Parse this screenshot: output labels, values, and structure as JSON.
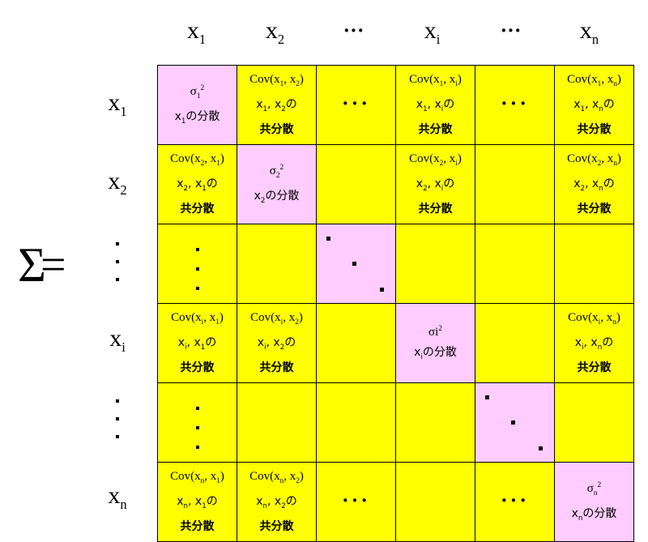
{
  "col_headers": [
    {
      "base": "x",
      "sub": "1"
    },
    {
      "base": "x",
      "sub": "2"
    },
    {
      "text": "···"
    },
    {
      "base": "x",
      "sub": "i"
    },
    {
      "text": "···"
    },
    {
      "base": "x",
      "sub": "n"
    }
  ],
  "row_headers": [
    {
      "base": "x",
      "sub": "1"
    },
    {
      "base": "x",
      "sub": "2"
    },
    {
      "text": "⋮"
    },
    {
      "base": "x",
      "sub": "i"
    },
    {
      "text": "⋮"
    },
    {
      "base": "x",
      "sub": "n"
    }
  ],
  "equation": {
    "symbol": "Σ",
    "equals": "="
  },
  "labels": {
    "variance_suffix": "の分散",
    "covariance_suffix": "の",
    "kyobunsan": "共分散",
    "cov": "Cov"
  },
  "colors": {
    "off_diagonal": "#ffff00",
    "diagonal": "#ffccff"
  },
  "matrix": [
    [
      {
        "kind": "var",
        "sigma_sub": "1",
        "var_sub": "1"
      },
      {
        "kind": "cov",
        "a": "1",
        "b": "2"
      },
      {
        "kind": "hdots"
      },
      {
        "kind": "cov",
        "a": "1",
        "b": "i"
      },
      {
        "kind": "hdots"
      },
      {
        "kind": "cov",
        "a": "1",
        "b": "n"
      }
    ],
    [
      {
        "kind": "cov",
        "a": "2",
        "b": "1"
      },
      {
        "kind": "var",
        "sigma_sub": "2",
        "var_sub": "2"
      },
      {
        "kind": "empty"
      },
      {
        "kind": "cov",
        "a": "2",
        "b": "i"
      },
      {
        "kind": "empty"
      },
      {
        "kind": "cov",
        "a": "2",
        "b": "n"
      }
    ],
    [
      {
        "kind": "vdots"
      },
      {
        "kind": "empty"
      },
      {
        "kind": "ddots"
      },
      {
        "kind": "empty"
      },
      {
        "kind": "empty"
      },
      {
        "kind": "empty"
      }
    ],
    [
      {
        "kind": "cov",
        "a": "i",
        "b": "1"
      },
      {
        "kind": "cov",
        "a": "i",
        "b": "2"
      },
      {
        "kind": "empty"
      },
      {
        "kind": "var",
        "sigma_text": "σi",
        "var_sub": "i"
      },
      {
        "kind": "empty"
      },
      {
        "kind": "cov",
        "a": "i",
        "b": "n"
      }
    ],
    [
      {
        "kind": "vdots"
      },
      {
        "kind": "empty"
      },
      {
        "kind": "empty"
      },
      {
        "kind": "empty"
      },
      {
        "kind": "ddots"
      },
      {
        "kind": "empty"
      }
    ],
    [
      {
        "kind": "cov",
        "a": "n",
        "b": "1"
      },
      {
        "kind": "cov",
        "a": "n",
        "b": "2"
      },
      {
        "kind": "hdots"
      },
      {
        "kind": "empty"
      },
      {
        "kind": "hdots"
      },
      {
        "kind": "var",
        "sigma_sub": "n",
        "var_sub": "n"
      }
    ]
  ]
}
